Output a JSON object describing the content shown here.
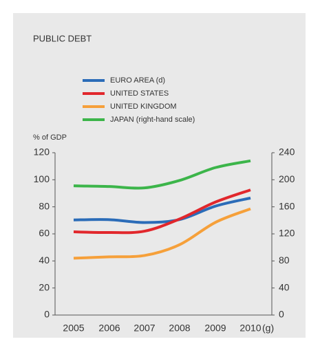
{
  "chart_data": {
    "type": "line",
    "title": "PUBLIC DEBT",
    "y_label": "% of GDP",
    "categories": [
      "2005",
      "2006",
      "2007",
      "2008",
      "2009",
      "2010"
    ],
    "x_note": "(g)",
    "series": [
      {
        "name": "EURO AREA (d)",
        "color": "#2b6cb8",
        "values": [
          70.3,
          70.5,
          68.4,
          70.6,
          80.5,
          86.5
        ]
      },
      {
        "name": "UNITED STATES",
        "color": "#e1272c",
        "values": [
          61.5,
          61,
          62,
          71,
          83.5,
          92.5
        ]
      },
      {
        "name": "UNITED KINGDOM",
        "color": "#f6a03a",
        "values": [
          42,
          43,
          44,
          52,
          68.5,
          78.5
        ]
      },
      {
        "name": "JAPAN (right-hand scale)",
        "color": "#3cb54a",
        "axis": "y2",
        "values": [
          191,
          190,
          188,
          199,
          218,
          228
        ]
      }
    ],
    "ylim": [
      0,
      120
    ],
    "yticks": [
      0,
      20,
      40,
      60,
      80,
      100,
      120
    ],
    "y2lim": [
      0,
      240
    ],
    "y2ticks": [
      0,
      40,
      80,
      120,
      160,
      200,
      240
    ]
  }
}
